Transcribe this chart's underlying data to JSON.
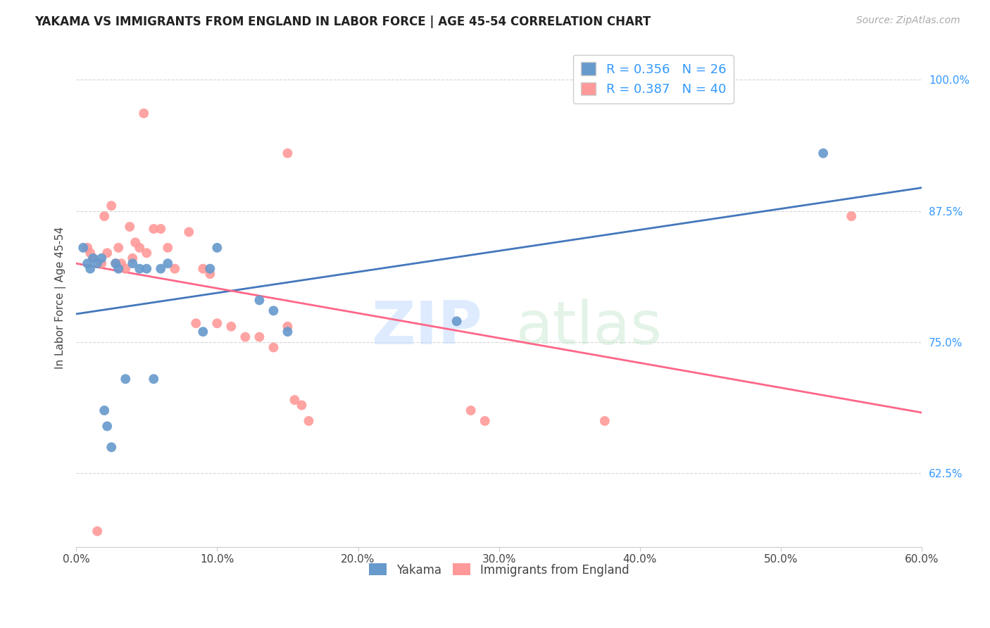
{
  "title": "YAKAMA VS IMMIGRANTS FROM ENGLAND IN LABOR FORCE | AGE 45-54 CORRELATION CHART",
  "source_text": "Source: ZipAtlas.com",
  "ylabel": "In Labor Force | Age 45-54",
  "xlim": [
    0.0,
    0.6
  ],
  "ylim": [
    0.555,
    1.03
  ],
  "xtick_labels": [
    "0.0%",
    "10.0%",
    "20.0%",
    "30.0%",
    "40.0%",
    "50.0%",
    "60.0%"
  ],
  "xtick_values": [
    0.0,
    0.1,
    0.2,
    0.3,
    0.4,
    0.5,
    0.6
  ],
  "ytick_labels": [
    "62.5%",
    "75.0%",
    "87.5%",
    "100.0%"
  ],
  "ytick_values": [
    0.625,
    0.75,
    0.875,
    1.0
  ],
  "yakama_color": "#6699CC",
  "england_color": "#FF9999",
  "trendline_yakama_color": "#4477BB",
  "trendline_england_color": "#FF6688",
  "R_yakama": 0.356,
  "N_yakama": 26,
  "R_england": 0.387,
  "N_england": 40,
  "watermark_zip": "ZIP",
  "watermark_atlas": "atlas",
  "legend_items": [
    "Yakama",
    "Immigrants from England"
  ],
  "yakama_x": [
    0.005,
    0.008,
    0.01,
    0.012,
    0.015,
    0.018,
    0.02,
    0.022,
    0.025,
    0.028,
    0.03,
    0.035,
    0.04,
    0.045,
    0.05,
    0.055,
    0.06,
    0.065,
    0.09,
    0.095,
    0.1,
    0.13,
    0.14,
    0.15,
    0.27,
    0.53
  ],
  "yakama_y": [
    0.84,
    0.825,
    0.82,
    0.83,
    0.825,
    0.83,
    0.685,
    0.67,
    0.65,
    0.825,
    0.82,
    0.715,
    0.825,
    0.82,
    0.82,
    0.715,
    0.82,
    0.825,
    0.76,
    0.82,
    0.84,
    0.79,
    0.78,
    0.76,
    0.77,
    0.93
  ],
  "england_x": [
    0.008,
    0.01,
    0.012,
    0.015,
    0.018,
    0.02,
    0.022,
    0.025,
    0.028,
    0.03,
    0.032,
    0.035,
    0.038,
    0.04,
    0.042,
    0.045,
    0.048,
    0.05,
    0.055,
    0.06,
    0.065,
    0.07,
    0.08,
    0.085,
    0.09,
    0.095,
    0.1,
    0.11,
    0.12,
    0.13,
    0.14,
    0.15,
    0.155,
    0.16,
    0.165,
    0.28,
    0.29,
    0.375,
    0.15,
    0.55
  ],
  "england_y": [
    0.84,
    0.835,
    0.83,
    0.57,
    0.825,
    0.87,
    0.835,
    0.88,
    0.825,
    0.84,
    0.825,
    0.82,
    0.86,
    0.83,
    0.845,
    0.84,
    0.968,
    0.835,
    0.858,
    0.858,
    0.84,
    0.82,
    0.855,
    0.768,
    0.82,
    0.815,
    0.768,
    0.765,
    0.755,
    0.755,
    0.745,
    0.765,
    0.695,
    0.69,
    0.675,
    0.685,
    0.675,
    0.675,
    0.93,
    0.87
  ]
}
